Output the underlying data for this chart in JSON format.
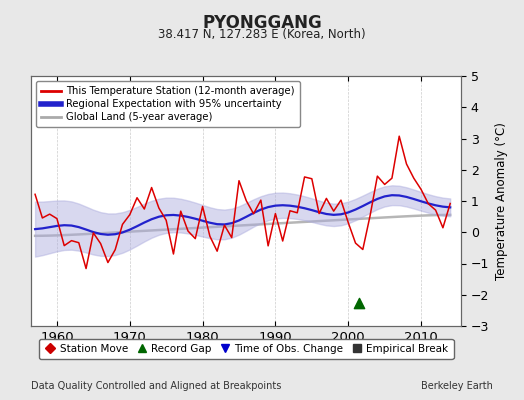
{
  "title": "PYONGGANG",
  "subtitle": "38.417 N, 127.283 E (Korea, North)",
  "ylabel": "Temperature Anomaly (°C)",
  "xlabel_note": "Data Quality Controlled and Aligned at Breakpoints",
  "credit": "Berkeley Earth",
  "xlim": [
    1956.5,
    2015.5
  ],
  "ylim": [
    -3.0,
    5.0
  ],
  "yticks": [
    -3,
    -2,
    -1,
    0,
    1,
    2,
    3,
    4,
    5
  ],
  "xticks": [
    1960,
    1970,
    1980,
    1990,
    2000,
    2010
  ],
  "bg_color": "#e8e8e8",
  "plot_bg_color": "#ffffff",
  "grid_color": "#cccccc",
  "station_line_color": "#dd0000",
  "regional_line_color": "#2222cc",
  "regional_fill_color": "#aaaadd",
  "global_line_color": "#aaaaaa",
  "legend_station": "This Temperature Station (12-month average)",
  "legend_regional": "Regional Expectation with 95% uncertainty",
  "legend_global": "Global Land (5-year average)",
  "marker_station_move": {
    "label": "Station Move",
    "color": "#cc0000",
    "marker": "D"
  },
  "marker_record_gap": {
    "label": "Record Gap",
    "color": "#006600",
    "marker": "^"
  },
  "marker_obs_change": {
    "label": "Time of Obs. Change",
    "color": "#0000cc",
    "marker": "v"
  },
  "marker_empirical": {
    "label": "Empirical Break",
    "color": "#333333",
    "marker": "s"
  },
  "record_gap_x": 2001.5,
  "record_gap_y": -2.25
}
